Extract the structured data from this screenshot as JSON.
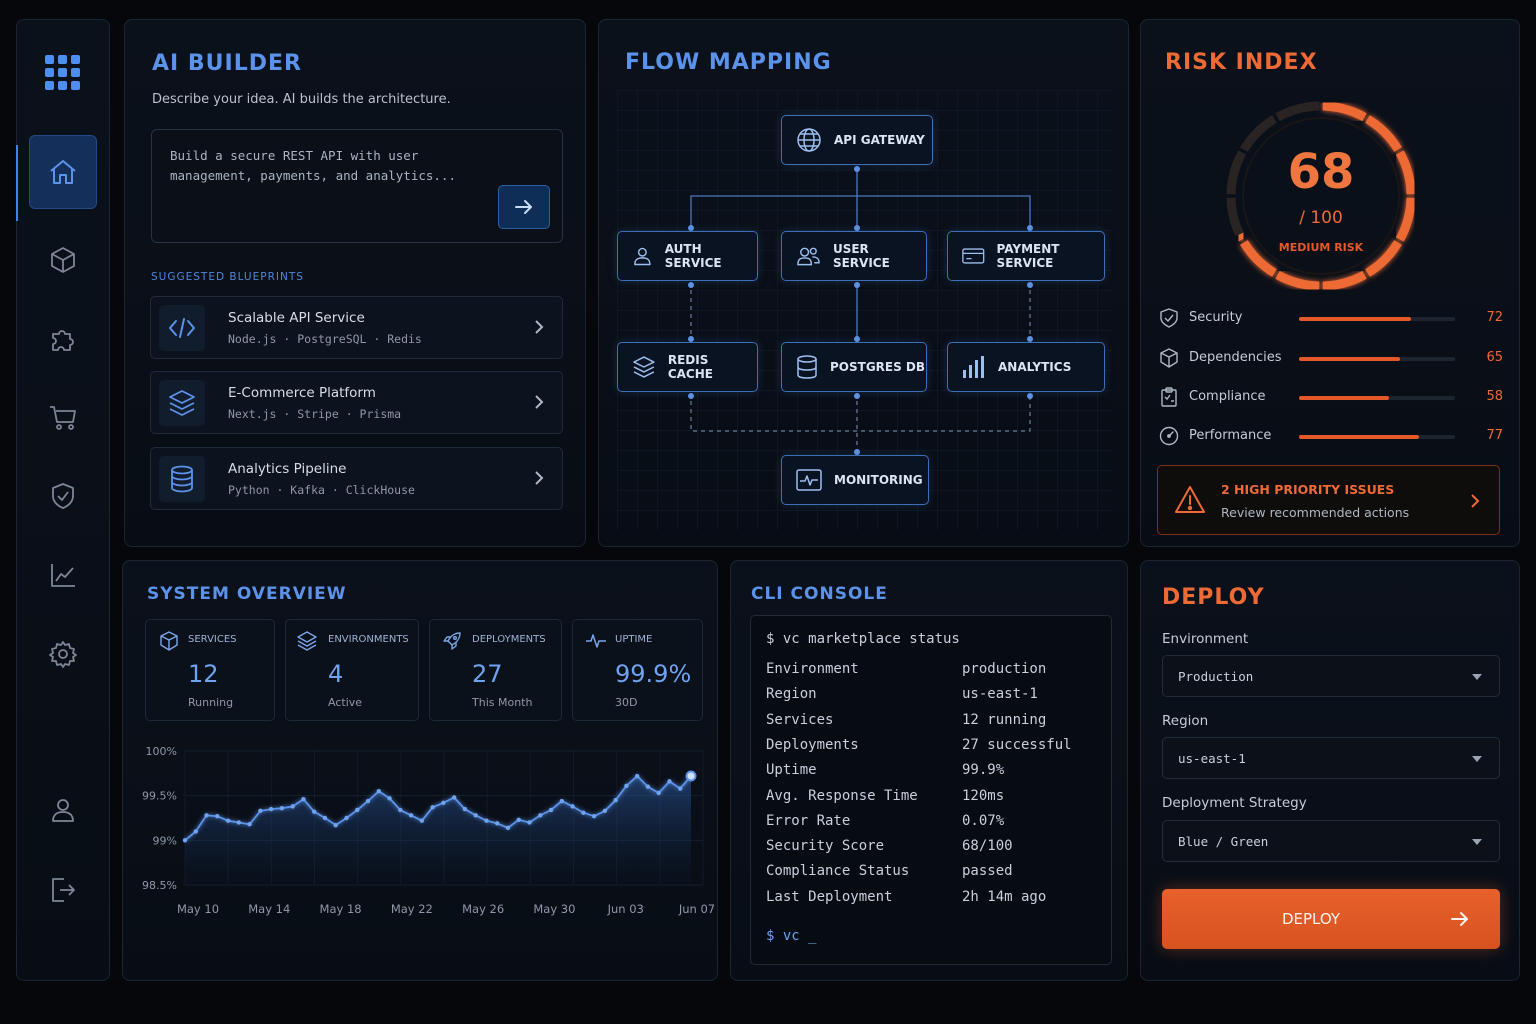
{
  "colors": {
    "accent_blue": "#5b93ea",
    "accent_orange": "#ee6a35",
    "background": "#05070b"
  },
  "sidebar": {
    "items": [
      {
        "icon": "grid-icon"
      },
      {
        "icon": "home-icon",
        "active": true
      },
      {
        "icon": "cube-icon"
      },
      {
        "icon": "puzzle-icon"
      },
      {
        "icon": "cart-icon"
      },
      {
        "icon": "shield-check-icon"
      },
      {
        "icon": "line-chart-icon"
      },
      {
        "icon": "gear-icon"
      },
      {
        "icon": "user-icon"
      },
      {
        "icon": "logout-icon"
      }
    ]
  },
  "ai_builder": {
    "title": "AI BUILDER",
    "subtitle": "Describe your idea. AI builds the architecture.",
    "prompt_line1": "Build a secure REST API with user",
    "prompt_line2": "management, payments, and analytics...",
    "send_icon": "arrow-right-icon",
    "blueprints_label": "SUGGESTED BLUEPRINTS",
    "blueprints": [
      {
        "title": "Scalable API Service",
        "stack": "Node.js · PostgreSQL · Redis",
        "icon": "code-icon"
      },
      {
        "title": "E-Commerce Platform",
        "stack": "Next.js · Stripe · Prisma",
        "icon": "layers-icon"
      },
      {
        "title": "Analytics Pipeline",
        "stack": "Python · Kafka · ClickHouse",
        "icon": "database-icon"
      }
    ]
  },
  "flow": {
    "title": "FLOW MAPPING",
    "nodes": {
      "api_gateway": "API GATEWAY",
      "auth": "AUTH SERVICE",
      "user": "USER SERVICE",
      "payment": "PAYMENT SERVICE",
      "redis": "REDIS CACHE",
      "postgres": "POSTGRES DB",
      "analytics": "ANALYTICS",
      "monitoring": "MONITORING"
    }
  },
  "risk": {
    "title": "RISK INDEX",
    "score": "68",
    "out_of": "/ 100",
    "level": "MEDIUM RISK",
    "score_fraction": 0.68,
    "metrics": [
      {
        "label": "Security",
        "value": "72",
        "fraction": 0.72,
        "icon": "shield-icon"
      },
      {
        "label": "Dependencies",
        "value": "65",
        "fraction": 0.65,
        "icon": "cube-icon"
      },
      {
        "label": "Compliance",
        "value": "58",
        "fraction": 0.58,
        "icon": "clipboard-icon"
      },
      {
        "label": "Performance",
        "value": "77",
        "fraction": 0.77,
        "icon": "gauge-icon"
      }
    ],
    "alert_title": "2 HIGH PRIORITY ISSUES",
    "alert_sub": "Review recommended actions"
  },
  "overview": {
    "title": "SYSTEM OVERVIEW",
    "stats": [
      {
        "label": "SERVICES",
        "value": "12",
        "sub": "Running",
        "icon": "cube-icon"
      },
      {
        "label": "ENVIRONMENTS",
        "value": "4",
        "sub": "Active",
        "icon": "layers-icon"
      },
      {
        "label": "DEPLOYMENTS",
        "value": "27",
        "sub": "This Month",
        "icon": "rocket-icon"
      },
      {
        "label": "UPTIME",
        "value": "99.9%",
        "sub": "30D",
        "icon": "pulse-icon"
      }
    ]
  },
  "chart_data": {
    "type": "area",
    "title": "",
    "xlabel": "",
    "ylabel": "",
    "ylim": [
      98.5,
      100
    ],
    "y_ticks": [
      "100%",
      "99.5%",
      "99%",
      "98.5%"
    ],
    "x_ticks": [
      "May 10",
      "May 14",
      "May 18",
      "May 22",
      "May 26",
      "May 30",
      "Jun 03",
      "Jun 07"
    ],
    "series": [
      {
        "values": [
          99.0,
          99.1,
          99.28,
          99.27,
          99.22,
          99.2,
          99.18,
          99.33,
          99.35,
          99.36,
          99.38,
          99.46,
          99.32,
          99.25,
          99.17,
          99.25,
          99.34,
          99.44,
          99.55,
          99.47,
          99.34,
          99.28,
          99.22,
          99.37,
          99.42,
          99.48,
          99.35,
          99.28,
          99.22,
          99.19,
          99.14,
          99.23,
          99.2,
          99.28,
          99.34,
          99.44,
          99.38,
          99.31,
          99.27,
          99.33,
          99.45,
          99.61,
          99.72,
          99.6,
          99.53,
          99.66,
          99.58,
          99.72
        ]
      }
    ],
    "grid": true,
    "legend": "none"
  },
  "console": {
    "title": "CLI CONSOLE",
    "command": "$ vc marketplace status",
    "rows": [
      {
        "key": "Environment",
        "value": "production"
      },
      {
        "key": "Region",
        "value": "us-east-1"
      },
      {
        "key": "Services",
        "value": "12 running"
      },
      {
        "key": "Deployments",
        "value": "27 successful"
      },
      {
        "key": "Uptime",
        "value": "99.9%"
      },
      {
        "key": "Avg. Response Time",
        "value": "120ms"
      },
      {
        "key": "Error Rate",
        "value": "0.07%"
      },
      {
        "key": "Security Score",
        "value": "68/100"
      },
      {
        "key": "Compliance Status",
        "value": "passed"
      },
      {
        "key": "Last Deployment",
        "value": "2h 14m ago"
      }
    ],
    "prompt": "$ vc _"
  },
  "deploy": {
    "title": "DEPLOY",
    "environment_label": "Environment",
    "environment_value": "Production",
    "region_label": "Region",
    "region_value": "us-east-1",
    "strategy_label": "Deployment Strategy",
    "strategy_value": "Blue / Green",
    "button_label": "DEPLOY"
  }
}
